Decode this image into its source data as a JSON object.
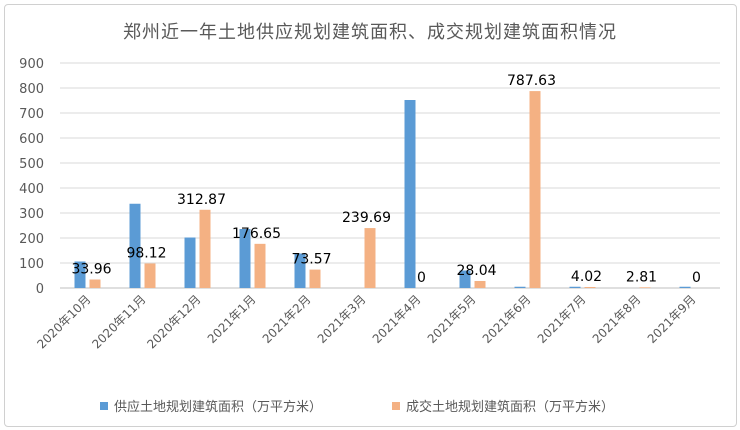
{
  "chart_data": {
    "type": "bar",
    "title": "郑州近一年土地供应规划建筑面积、成交规划建筑面积情况",
    "categories": [
      "2020年10月",
      "2020年11月",
      "2020年12月",
      "2021年1月",
      "2021年2月",
      "2021年3月",
      "2021年4月",
      "2021年5月",
      "2021年6月",
      "2021年7月",
      "2021年8月",
      "2021年9月"
    ],
    "ylim": [
      0,
      900
    ],
    "yticks": [
      0,
      100,
      200,
      300,
      400,
      500,
      600,
      700,
      800,
      900
    ],
    "grid": true,
    "legend_position": "bottom",
    "series": [
      {
        "name": "供应土地规划建筑面积（万平方米）",
        "color": "#5b9bd5",
        "values": [
          106,
          337,
          202,
          236,
          138,
          0,
          752,
          70,
          5,
          5,
          0,
          5
        ],
        "labels": [
          null,
          null,
          null,
          null,
          null,
          null,
          null,
          null,
          null,
          null,
          null,
          null
        ]
      },
      {
        "name": "成交土地规划建筑面积（万平方米）",
        "color": "#f4b183",
        "values": [
          33.96,
          98.12,
          312.87,
          176.65,
          73.57,
          239.69,
          0,
          28.04,
          787.63,
          4.02,
          2.81,
          0
        ],
        "labels": [
          "33.96",
          "98.12",
          "312.87",
          "176.65",
          "73.57",
          "239.69",
          "0",
          "28.04",
          "787.63",
          "4.02",
          "2.81",
          "0"
        ]
      }
    ]
  }
}
